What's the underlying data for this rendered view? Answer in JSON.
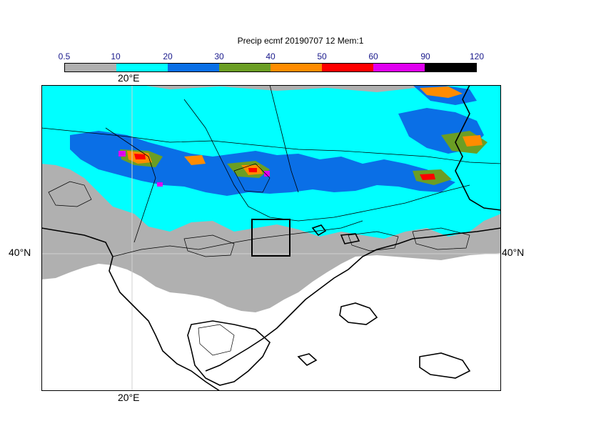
{
  "title": "Precip ecmf 20190707 12 Mem:1",
  "colorbar": {
    "ticks": [
      "0.5",
      "10",
      "20",
      "30",
      "40",
      "50",
      "60",
      "90",
      "120"
    ],
    "colors": [
      "#b0b0b0",
      "#00ffff",
      "#0a6fe6",
      "#6b9e24",
      "#ff8c00",
      "#ff0000",
      "#e000f0",
      "#000000"
    ]
  },
  "axes": {
    "lon_top": "20°E",
    "lon_bottom": "20°E",
    "lat_left": "40°N",
    "lat_right": "40°N"
  },
  "palette": {
    "gray": "#b0b0b0",
    "cyan": "#00ffff",
    "blue": "#0a6fe6",
    "green": "#6b9e24",
    "orange": "#ff8c00",
    "red": "#ff0000",
    "magenta": "#e000f0"
  }
}
